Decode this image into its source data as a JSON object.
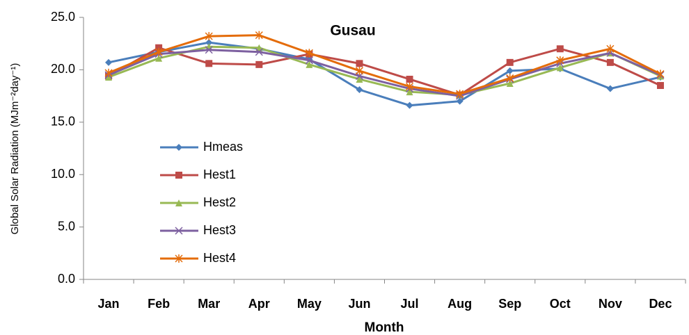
{
  "chart_data": {
    "type": "line",
    "title": "Gusau",
    "x_label": "Month",
    "y_label": "Global Solar Radiation (MJm⁻²day⁻¹)",
    "categories": [
      "Jan",
      "Feb",
      "Mar",
      "Apr",
      "May",
      "Jun",
      "Jul",
      "Aug",
      "Sep",
      "Oct",
      "Nov",
      "Dec"
    ],
    "series": [
      {
        "name": "Hmeas",
        "color": "#4a7ebb",
        "marker": "diamond",
        "values": [
          20.7,
          21.7,
          22.6,
          22.0,
          21.0,
          18.1,
          16.6,
          17.0,
          19.9,
          20.1,
          18.2,
          19.3
        ]
      },
      {
        "name": "Hest1",
        "color": "#be4b48",
        "marker": "square",
        "values": [
          19.4,
          22.1,
          20.6,
          20.5,
          21.5,
          20.6,
          19.1,
          17.6,
          20.7,
          22.0,
          20.7,
          18.5
        ]
      },
      {
        "name": "Hest2",
        "color": "#98b954",
        "marker": "triangle",
        "values": [
          19.3,
          21.1,
          22.2,
          22.1,
          20.5,
          19.1,
          17.9,
          17.6,
          18.7,
          20.2,
          21.6,
          19.4
        ]
      },
      {
        "name": "Hest3",
        "color": "#7d60a0",
        "marker": "x",
        "values": [
          19.5,
          21.5,
          21.9,
          21.7,
          20.9,
          19.4,
          18.2,
          17.5,
          19.1,
          20.6,
          21.6,
          19.5
        ]
      },
      {
        "name": "Hest4",
        "color": "#e46c0a",
        "marker": "star",
        "values": [
          19.7,
          21.7,
          23.2,
          23.3,
          21.6,
          19.9,
          18.4,
          17.7,
          19.2,
          20.9,
          22.0,
          19.6
        ]
      }
    ],
    "ylim": [
      0,
      25
    ],
    "yticks": [
      {
        "value": 0,
        "label": "0.0"
      },
      {
        "value": 5,
        "label": "5.0"
      },
      {
        "value": 10,
        "label": "10.0"
      },
      {
        "value": 15,
        "label": "15.0"
      },
      {
        "value": 20,
        "label": "20.0"
      },
      {
        "value": 25,
        "label": "25.0"
      }
    ],
    "grid": false,
    "legend": "left"
  }
}
